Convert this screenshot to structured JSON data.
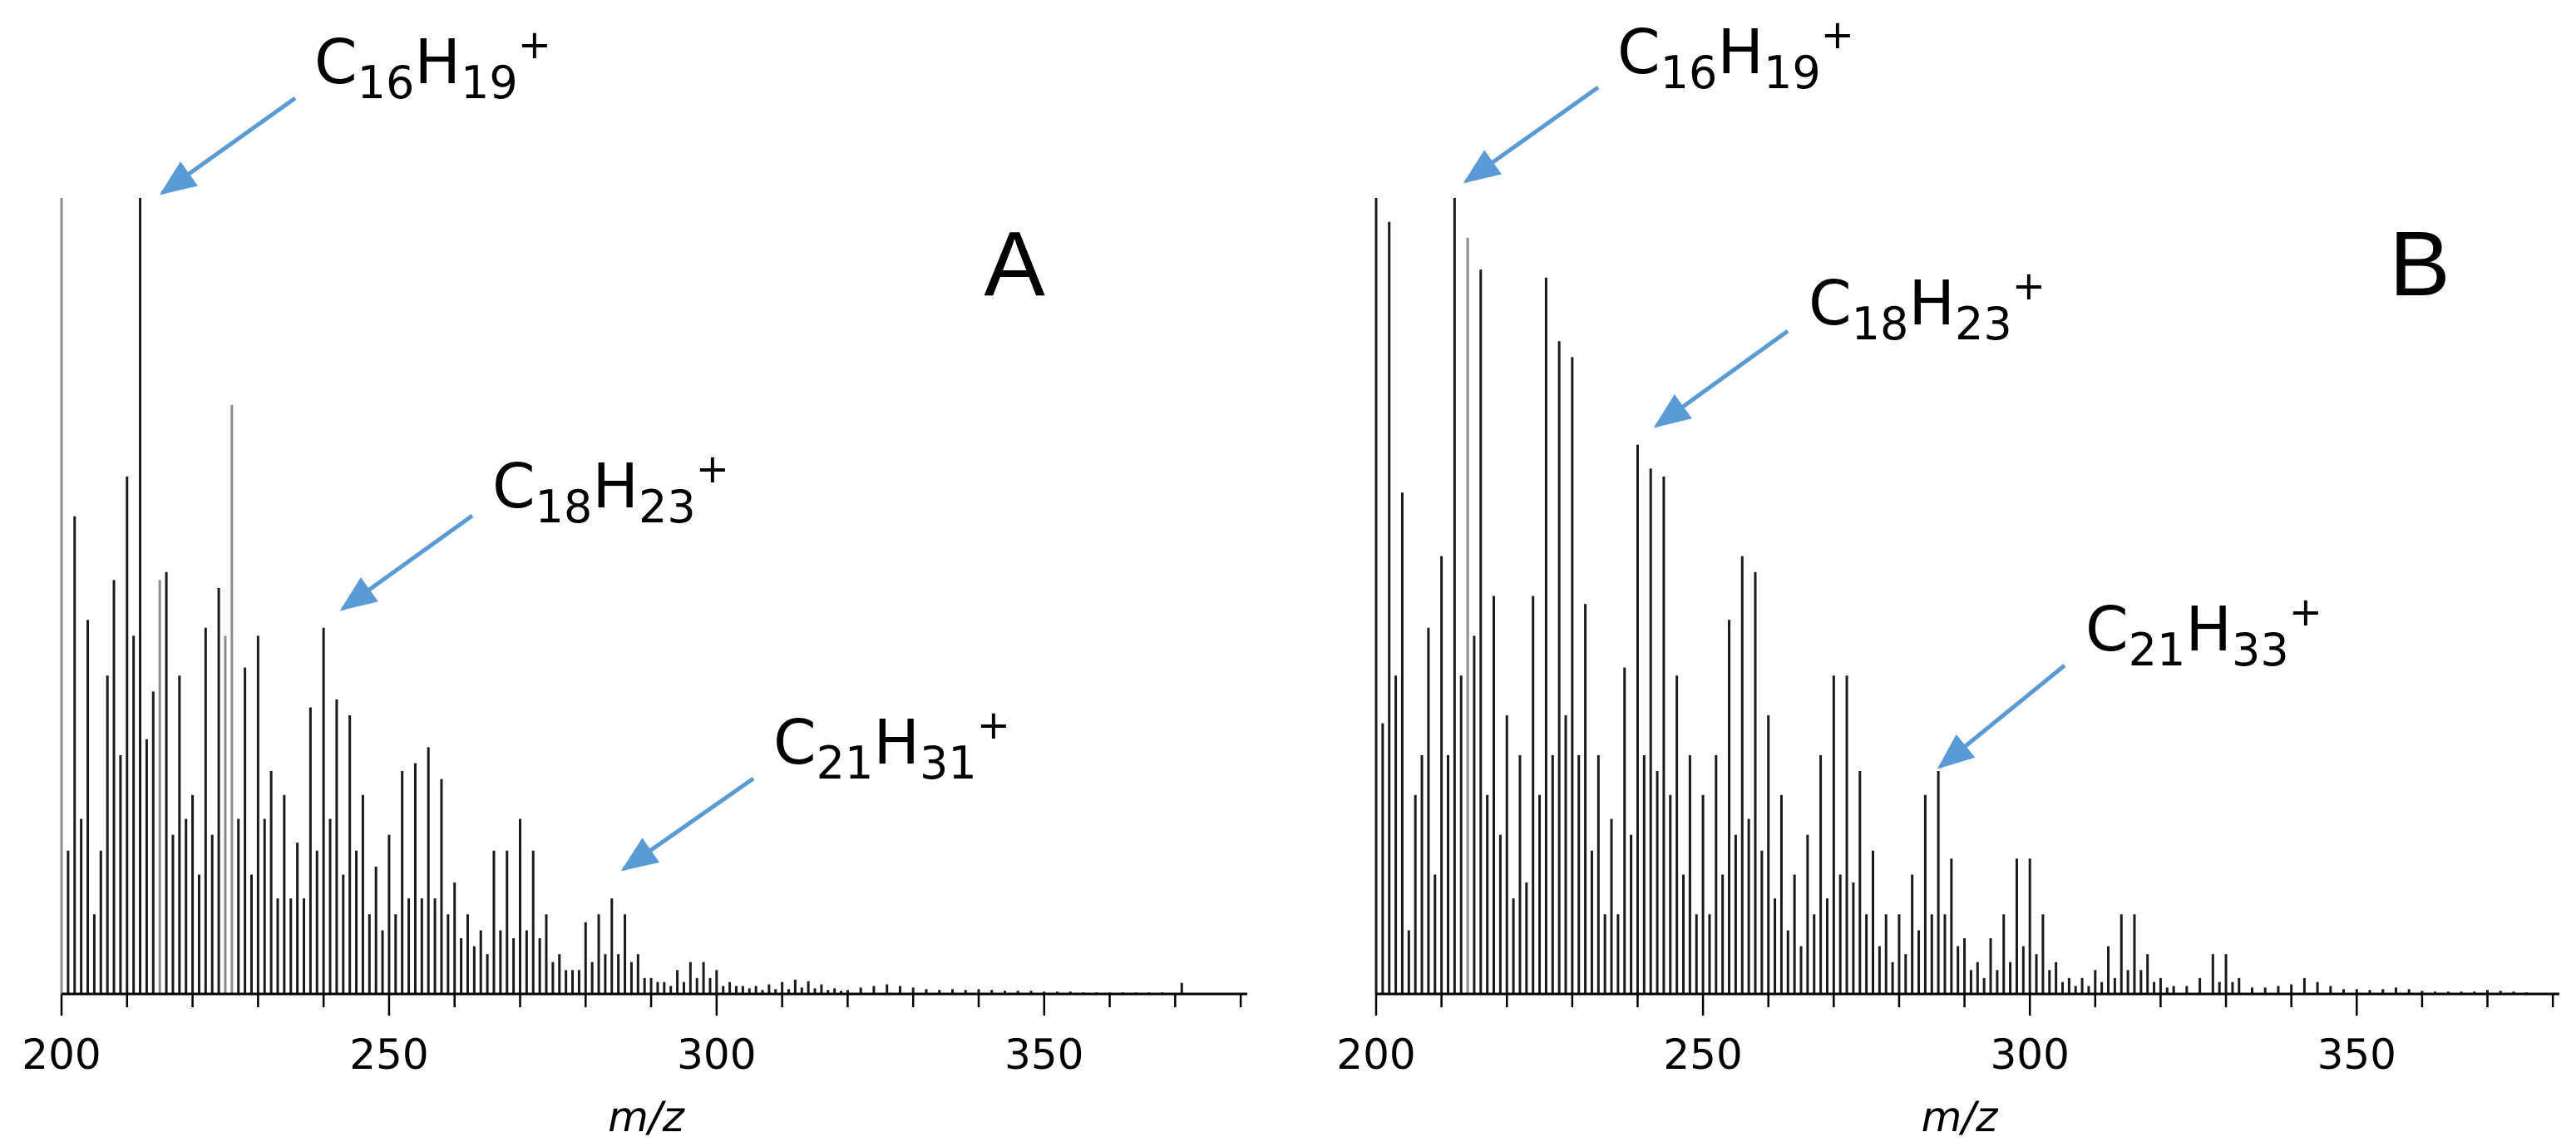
{
  "colors": {
    "peak_dark": "#1a1a1a",
    "peak_light": "#8c8c8c",
    "axis": "#000000",
    "arrow": "#5b9bd5"
  },
  "chart_data": [
    {
      "type": "bar",
      "panel_label": "A",
      "xlabel": "m/z",
      "xlim": [
        200,
        381
      ],
      "ylim": [
        0,
        100
      ],
      "xticks": [
        200,
        250,
        300,
        350
      ],
      "tick_labels": [
        "200",
        "250",
        "300",
        "350"
      ],
      "annotations": [
        {
          "formula": {
            "c": "16",
            "h": "19",
            "charge": "+"
          },
          "x": 212,
          "y": 100
        },
        {
          "formula": {
            "c": "18",
            "h": "23",
            "charge": "+"
          },
          "x": 240,
          "y": 46
        },
        {
          "formula": {
            "c": "21",
            "h": "31",
            "charge": "+"
          },
          "x": 285,
          "y": 16
        }
      ],
      "peaks": [
        {
          "mz": 200,
          "i": 100,
          "light": true
        },
        {
          "mz": 201,
          "i": 18
        },
        {
          "mz": 202,
          "i": 60
        },
        {
          "mz": 203,
          "i": 22
        },
        {
          "mz": 204,
          "i": 47
        },
        {
          "mz": 205,
          "i": 10
        },
        {
          "mz": 206,
          "i": 18
        },
        {
          "mz": 207,
          "i": 40
        },
        {
          "mz": 208,
          "i": 52
        },
        {
          "mz": 209,
          "i": 30
        },
        {
          "mz": 210,
          "i": 65
        },
        {
          "mz": 211,
          "i": 45
        },
        {
          "mz": 212,
          "i": 100
        },
        {
          "mz": 213,
          "i": 32
        },
        {
          "mz": 214,
          "i": 38
        },
        {
          "mz": 215,
          "i": 52,
          "light": true
        },
        {
          "mz": 216,
          "i": 53
        },
        {
          "mz": 217,
          "i": 20
        },
        {
          "mz": 218,
          "i": 40
        },
        {
          "mz": 219,
          "i": 22
        },
        {
          "mz": 220,
          "i": 25
        },
        {
          "mz": 221,
          "i": 15
        },
        {
          "mz": 222,
          "i": 46
        },
        {
          "mz": 223,
          "i": 20
        },
        {
          "mz": 224,
          "i": 51
        },
        {
          "mz": 225,
          "i": 45,
          "light": true
        },
        {
          "mz": 226,
          "i": 74,
          "light": true
        },
        {
          "mz": 227,
          "i": 22
        },
        {
          "mz": 228,
          "i": 41
        },
        {
          "mz": 229,
          "i": 15
        },
        {
          "mz": 230,
          "i": 45
        },
        {
          "mz": 231,
          "i": 22
        },
        {
          "mz": 232,
          "i": 28
        },
        {
          "mz": 233,
          "i": 12
        },
        {
          "mz": 234,
          "i": 25
        },
        {
          "mz": 235,
          "i": 12
        },
        {
          "mz": 236,
          "i": 19
        },
        {
          "mz": 237,
          "i": 12
        },
        {
          "mz": 238,
          "i": 36
        },
        {
          "mz": 239,
          "i": 18
        },
        {
          "mz": 240,
          "i": 46
        },
        {
          "mz": 241,
          "i": 22
        },
        {
          "mz": 242,
          "i": 37
        },
        {
          "mz": 243,
          "i": 15
        },
        {
          "mz": 244,
          "i": 35
        },
        {
          "mz": 245,
          "i": 18
        },
        {
          "mz": 246,
          "i": 25
        },
        {
          "mz": 247,
          "i": 10
        },
        {
          "mz": 248,
          "i": 16
        },
        {
          "mz": 249,
          "i": 8
        },
        {
          "mz": 250,
          "i": 20
        },
        {
          "mz": 251,
          "i": 10
        },
        {
          "mz": 252,
          "i": 28
        },
        {
          "mz": 253,
          "i": 12
        },
        {
          "mz": 254,
          "i": 29
        },
        {
          "mz": 255,
          "i": 12
        },
        {
          "mz": 256,
          "i": 31
        },
        {
          "mz": 257,
          "i": 12
        },
        {
          "mz": 258,
          "i": 27
        },
        {
          "mz": 259,
          "i": 10
        },
        {
          "mz": 260,
          "i": 14
        },
        {
          "mz": 261,
          "i": 7
        },
        {
          "mz": 262,
          "i": 10
        },
        {
          "mz": 263,
          "i": 6
        },
        {
          "mz": 264,
          "i": 8
        },
        {
          "mz": 265,
          "i": 5
        },
        {
          "mz": 266,
          "i": 18
        },
        {
          "mz": 267,
          "i": 8
        },
        {
          "mz": 268,
          "i": 18
        },
        {
          "mz": 269,
          "i": 7
        },
        {
          "mz": 270,
          "i": 22
        },
        {
          "mz": 271,
          "i": 8
        },
        {
          "mz": 272,
          "i": 18
        },
        {
          "mz": 273,
          "i": 7
        },
        {
          "mz": 274,
          "i": 10
        },
        {
          "mz": 275,
          "i": 4
        },
        {
          "mz": 276,
          "i": 5
        },
        {
          "mz": 277,
          "i": 3
        },
        {
          "mz": 278,
          "i": 3
        },
        {
          "mz": 279,
          "i": 3
        },
        {
          "mz": 280,
          "i": 9
        },
        {
          "mz": 281,
          "i": 4
        },
        {
          "mz": 282,
          "i": 10
        },
        {
          "mz": 283,
          "i": 5
        },
        {
          "mz": 284,
          "i": 12
        },
        {
          "mz": 285,
          "i": 5
        },
        {
          "mz": 286,
          "i": 10
        },
        {
          "mz": 287,
          "i": 4
        },
        {
          "mz": 288,
          "i": 5
        },
        {
          "mz": 289,
          "i": 2
        },
        {
          "mz": 290,
          "i": 2
        },
        {
          "mz": 291,
          "i": 1.5
        },
        {
          "mz": 292,
          "i": 1.5
        },
        {
          "mz": 293,
          "i": 1
        },
        {
          "mz": 294,
          "i": 3
        },
        {
          "mz": 295,
          "i": 1.5
        },
        {
          "mz": 296,
          "i": 4
        },
        {
          "mz": 297,
          "i": 2
        },
        {
          "mz": 298,
          "i": 4
        },
        {
          "mz": 299,
          "i": 2
        },
        {
          "mz": 300,
          "i": 3
        },
        {
          "mz": 301,
          "i": 1
        },
        {
          "mz": 302,
          "i": 1.5
        },
        {
          "mz": 303,
          "i": 1
        },
        {
          "mz": 304,
          "i": 1
        },
        {
          "mz": 305,
          "i": 0.7
        },
        {
          "mz": 306,
          "i": 1
        },
        {
          "mz": 307,
          "i": 0.5
        },
        {
          "mz": 308,
          "i": 1.2
        },
        {
          "mz": 309,
          "i": 0.6
        },
        {
          "mz": 310,
          "i": 1.5
        },
        {
          "mz": 311,
          "i": 0.6
        },
        {
          "mz": 312,
          "i": 1.8
        },
        {
          "mz": 313,
          "i": 0.8
        },
        {
          "mz": 314,
          "i": 1.6
        },
        {
          "mz": 315,
          "i": 0.7
        },
        {
          "mz": 316,
          "i": 1.2
        },
        {
          "mz": 317,
          "i": 0.5
        },
        {
          "mz": 318,
          "i": 0.7
        },
        {
          "mz": 319,
          "i": 0.4
        },
        {
          "mz": 320,
          "i": 0.5
        },
        {
          "mz": 322,
          "i": 0.8
        },
        {
          "mz": 324,
          "i": 1
        },
        {
          "mz": 326,
          "i": 1.2
        },
        {
          "mz": 328,
          "i": 1
        },
        {
          "mz": 330,
          "i": 0.8
        },
        {
          "mz": 332,
          "i": 0.6
        },
        {
          "mz": 334,
          "i": 0.5
        },
        {
          "mz": 336,
          "i": 0.6
        },
        {
          "mz": 338,
          "i": 0.5
        },
        {
          "mz": 340,
          "i": 0.6
        },
        {
          "mz": 342,
          "i": 0.5
        },
        {
          "mz": 344,
          "i": 0.4
        },
        {
          "mz": 346,
          "i": 0.4
        },
        {
          "mz": 348,
          "i": 0.4
        },
        {
          "mz": 350,
          "i": 0.3
        },
        {
          "mz": 352,
          "i": 0.3
        },
        {
          "mz": 354,
          "i": 0.3
        },
        {
          "mz": 356,
          "i": 0.2
        },
        {
          "mz": 358,
          "i": 0.2
        },
        {
          "mz": 360,
          "i": 0.2
        },
        {
          "mz": 362,
          "i": 0.2
        },
        {
          "mz": 364,
          "i": 0.2
        },
        {
          "mz": 366,
          "i": 0.2
        },
        {
          "mz": 368,
          "i": 0.2
        },
        {
          "mz": 371,
          "i": 1.4
        }
      ]
    },
    {
      "type": "bar",
      "panel_label": "B",
      "xlabel": "m/z",
      "xlim": [
        200,
        381
      ],
      "ylim": [
        0,
        100
      ],
      "xticks": [
        200,
        250,
        300,
        350
      ],
      "tick_labels": [
        "200",
        "250",
        "300",
        "350"
      ],
      "annotations": [
        {
          "formula": {
            "c": "16",
            "h": "19",
            "charge": "+"
          },
          "x": 212,
          "y": 100
        },
        {
          "formula": {
            "c": "18",
            "h": "23",
            "charge": "+"
          },
          "x": 240,
          "y": 69
        },
        {
          "formula": {
            "c": "21",
            "h": "33",
            "charge": "+"
          },
          "x": 285,
          "y": 28
        }
      ],
      "peaks": [
        {
          "mz": 200,
          "i": 100
        },
        {
          "mz": 201,
          "i": 34
        },
        {
          "mz": 202,
          "i": 97
        },
        {
          "mz": 203,
          "i": 40
        },
        {
          "mz": 204,
          "i": 63
        },
        {
          "mz": 205,
          "i": 8
        },
        {
          "mz": 206,
          "i": 25
        },
        {
          "mz": 207,
          "i": 30
        },
        {
          "mz": 208,
          "i": 46
        },
        {
          "mz": 209,
          "i": 15
        },
        {
          "mz": 210,
          "i": 55
        },
        {
          "mz": 211,
          "i": 30
        },
        {
          "mz": 212,
          "i": 100
        },
        {
          "mz": 213,
          "i": 40
        },
        {
          "mz": 214,
          "i": 95,
          "light": true
        },
        {
          "mz": 215,
          "i": 45
        },
        {
          "mz": 216,
          "i": 91
        },
        {
          "mz": 217,
          "i": 25
        },
        {
          "mz": 218,
          "i": 50
        },
        {
          "mz": 219,
          "i": 20
        },
        {
          "mz": 220,
          "i": 35
        },
        {
          "mz": 221,
          "i": 12
        },
        {
          "mz": 222,
          "i": 30
        },
        {
          "mz": 223,
          "i": 14
        },
        {
          "mz": 224,
          "i": 50
        },
        {
          "mz": 225,
          "i": 25
        },
        {
          "mz": 226,
          "i": 90
        },
        {
          "mz": 227,
          "i": 30
        },
        {
          "mz": 228,
          "i": 82
        },
        {
          "mz": 229,
          "i": 35
        },
        {
          "mz": 230,
          "i": 80
        },
        {
          "mz": 231,
          "i": 30
        },
        {
          "mz": 232,
          "i": 49
        },
        {
          "mz": 233,
          "i": 18
        },
        {
          "mz": 234,
          "i": 30
        },
        {
          "mz": 235,
          "i": 10
        },
        {
          "mz": 236,
          "i": 22
        },
        {
          "mz": 237,
          "i": 10
        },
        {
          "mz": 238,
          "i": 41
        },
        {
          "mz": 239,
          "i": 20
        },
        {
          "mz": 240,
          "i": 69
        },
        {
          "mz": 241,
          "i": 30
        },
        {
          "mz": 242,
          "i": 66
        },
        {
          "mz": 243,
          "i": 28
        },
        {
          "mz": 244,
          "i": 65
        },
        {
          "mz": 245,
          "i": 25
        },
        {
          "mz": 246,
          "i": 40
        },
        {
          "mz": 247,
          "i": 15
        },
        {
          "mz": 248,
          "i": 30
        },
        {
          "mz": 249,
          "i": 10
        },
        {
          "mz": 250,
          "i": 25
        },
        {
          "mz": 251,
          "i": 10
        },
        {
          "mz": 252,
          "i": 30
        },
        {
          "mz": 253,
          "i": 15
        },
        {
          "mz": 254,
          "i": 47
        },
        {
          "mz": 255,
          "i": 20
        },
        {
          "mz": 256,
          "i": 55
        },
        {
          "mz": 257,
          "i": 22
        },
        {
          "mz": 258,
          "i": 53
        },
        {
          "mz": 259,
          "i": 18
        },
        {
          "mz": 260,
          "i": 35
        },
        {
          "mz": 261,
          "i": 12
        },
        {
          "mz": 262,
          "i": 25
        },
        {
          "mz": 263,
          "i": 8
        },
        {
          "mz": 264,
          "i": 15
        },
        {
          "mz": 265,
          "i": 6
        },
        {
          "mz": 266,
          "i": 20
        },
        {
          "mz": 267,
          "i": 10
        },
        {
          "mz": 268,
          "i": 30
        },
        {
          "mz": 269,
          "i": 12
        },
        {
          "mz": 270,
          "i": 40
        },
        {
          "mz": 271,
          "i": 15
        },
        {
          "mz": 272,
          "i": 40
        },
        {
          "mz": 273,
          "i": 14
        },
        {
          "mz": 274,
          "i": 28
        },
        {
          "mz": 275,
          "i": 10
        },
        {
          "mz": 276,
          "i": 18
        },
        {
          "mz": 277,
          "i": 6
        },
        {
          "mz": 278,
          "i": 10
        },
        {
          "mz": 279,
          "i": 4
        },
        {
          "mz": 280,
          "i": 10
        },
        {
          "mz": 281,
          "i": 5
        },
        {
          "mz": 282,
          "i": 15
        },
        {
          "mz": 283,
          "i": 8
        },
        {
          "mz": 284,
          "i": 25
        },
        {
          "mz": 285,
          "i": 10
        },
        {
          "mz": 286,
          "i": 28
        },
        {
          "mz": 287,
          "i": 10
        },
        {
          "mz": 288,
          "i": 17
        },
        {
          "mz": 289,
          "i": 6
        },
        {
          "mz": 290,
          "i": 7
        },
        {
          "mz": 291,
          "i": 3
        },
        {
          "mz": 292,
          "i": 4
        },
        {
          "mz": 293,
          "i": 2
        },
        {
          "mz": 294,
          "i": 7
        },
        {
          "mz": 295,
          "i": 3
        },
        {
          "mz": 296,
          "i": 10
        },
        {
          "mz": 297,
          "i": 4
        },
        {
          "mz": 298,
          "i": 17
        },
        {
          "mz": 299,
          "i": 6
        },
        {
          "mz": 300,
          "i": 17
        },
        {
          "mz": 301,
          "i": 5
        },
        {
          "mz": 302,
          "i": 10
        },
        {
          "mz": 303,
          "i": 3
        },
        {
          "mz": 304,
          "i": 4
        },
        {
          "mz": 305,
          "i": 1.5
        },
        {
          "mz": 306,
          "i": 2
        },
        {
          "mz": 307,
          "i": 1
        },
        {
          "mz": 308,
          "i": 2
        },
        {
          "mz": 309,
          "i": 1
        },
        {
          "mz": 310,
          "i": 3
        },
        {
          "mz": 311,
          "i": 1.5
        },
        {
          "mz": 312,
          "i": 6
        },
        {
          "mz": 313,
          "i": 2
        },
        {
          "mz": 314,
          "i": 10
        },
        {
          "mz": 315,
          "i": 3
        },
        {
          "mz": 316,
          "i": 10
        },
        {
          "mz": 317,
          "i": 3
        },
        {
          "mz": 318,
          "i": 5
        },
        {
          "mz": 319,
          "i": 1.5
        },
        {
          "mz": 320,
          "i": 2
        },
        {
          "mz": 321,
          "i": 0.8
        },
        {
          "mz": 322,
          "i": 1
        },
        {
          "mz": 324,
          "i": 1
        },
        {
          "mz": 326,
          "i": 2
        },
        {
          "mz": 328,
          "i": 5
        },
        {
          "mz": 329,
          "i": 1.5
        },
        {
          "mz": 330,
          "i": 5
        },
        {
          "mz": 331,
          "i": 1.5
        },
        {
          "mz": 332,
          "i": 2
        },
        {
          "mz": 334,
          "i": 0.8
        },
        {
          "mz": 336,
          "i": 0.8
        },
        {
          "mz": 338,
          "i": 1
        },
        {
          "mz": 340,
          "i": 1.2
        },
        {
          "mz": 342,
          "i": 2
        },
        {
          "mz": 344,
          "i": 1.5
        },
        {
          "mz": 346,
          "i": 1
        },
        {
          "mz": 348,
          "i": 0.6
        },
        {
          "mz": 350,
          "i": 0.6
        },
        {
          "mz": 352,
          "i": 0.5
        },
        {
          "mz": 354,
          "i": 0.6
        },
        {
          "mz": 356,
          "i": 0.8
        },
        {
          "mz": 358,
          "i": 0.6
        },
        {
          "mz": 360,
          "i": 0.4
        },
        {
          "mz": 362,
          "i": 0.3
        },
        {
          "mz": 364,
          "i": 0.3
        },
        {
          "mz": 366,
          "i": 0.3
        },
        {
          "mz": 368,
          "i": 0.3
        },
        {
          "mz": 370,
          "i": 0.5
        },
        {
          "mz": 372,
          "i": 0.4
        },
        {
          "mz": 374,
          "i": 0.3
        },
        {
          "mz": 376,
          "i": 0.2
        }
      ]
    }
  ]
}
